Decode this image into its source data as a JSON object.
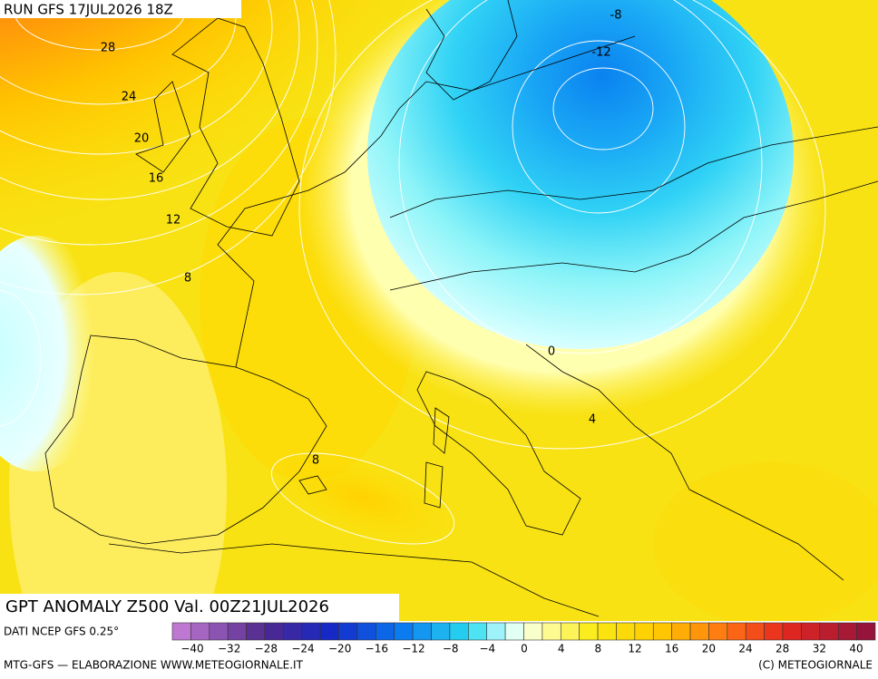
{
  "header": {
    "run": "RUN GFS 17JUL2026 18Z"
  },
  "map": {
    "title": "GPT ANOMALY Z500 Val. 00Z21JUL2026",
    "contour_labels": [
      "28",
      "24",
      "20",
      "16",
      "12",
      "8",
      "-8",
      "-12",
      "0",
      "4",
      "8"
    ]
  },
  "legend": {
    "source": "DATI NCEP GFS 0.25°",
    "ticks": [
      "−40",
      "−32",
      "−28",
      "−24",
      "−20",
      "−16",
      "−12",
      "−8",
      "−4",
      "0",
      "4",
      "8",
      "12",
      "16",
      "20",
      "24",
      "28",
      "32",
      "40"
    ]
  },
  "footer": {
    "left": "MTG-GFS — ELABORAZIONE WWW.METEOGIORNALE.IT",
    "right": "(C) METEOGIORNALE"
  }
}
